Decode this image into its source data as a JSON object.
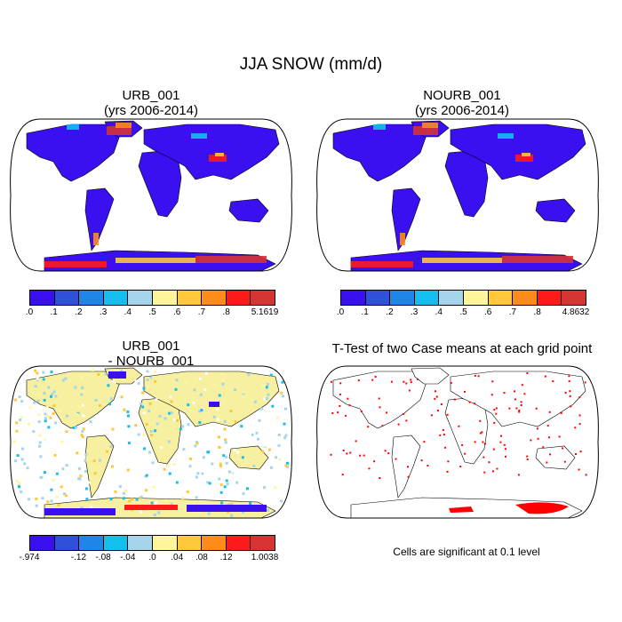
{
  "title": "JJA SNOW (mm/d)",
  "panels": [
    {
      "line1": "URB_001",
      "line2": "(yrs 2006-2014)",
      "colorbar": {
        "colors": [
          "#3a10f0",
          "#2f50d8",
          "#1f85e6",
          "#14bff0",
          "#a6d4ea",
          "#fff59b",
          "#ffc83a",
          "#ff8c1a",
          "#ff1a1a",
          "#d63333"
        ],
        "labels": [
          ".0",
          ".1",
          ".2",
          ".3",
          ".4",
          ".5",
          ".6",
          ".7",
          ".8",
          "5.1619"
        ]
      }
    },
    {
      "line1": "NOURB_001",
      "line2": "(yrs 2006-2014)",
      "colorbar": {
        "colors": [
          "#3a10f0",
          "#2f50d8",
          "#1f85e6",
          "#14bff0",
          "#a6d4ea",
          "#fff59b",
          "#ffc83a",
          "#ff8c1a",
          "#ff1a1a",
          "#d63333"
        ],
        "labels": [
          ".0",
          ".1",
          ".2",
          ".3",
          ".4",
          ".5",
          ".6",
          ".7",
          ".8",
          "4.8632"
        ]
      }
    },
    {
      "line1": "URB_001",
      "line2": "- NOURB_001",
      "colorbar": {
        "colors": [
          "#3a10f0",
          "#2f50d8",
          "#1f85e6",
          "#14bff0",
          "#a6d4ea",
          "#fff59b",
          "#ffc83a",
          "#ff8c1a",
          "#ff1a1a",
          "#d63333"
        ],
        "labels": [
          "-.974",
          "-.12",
          "-.08",
          "-.04",
          ".0",
          ".04",
          ".08",
          ".12",
          "1.0038"
        ]
      }
    },
    {
      "line1": "T-Test of two Case means at each grid point",
      "note": "Cells are significant at 0.1 level"
    }
  ],
  "colors": {
    "land_blue": "#3a10f0",
    "diff_land": "#f6f0a0",
    "sig_red": "#ff0000"
  }
}
